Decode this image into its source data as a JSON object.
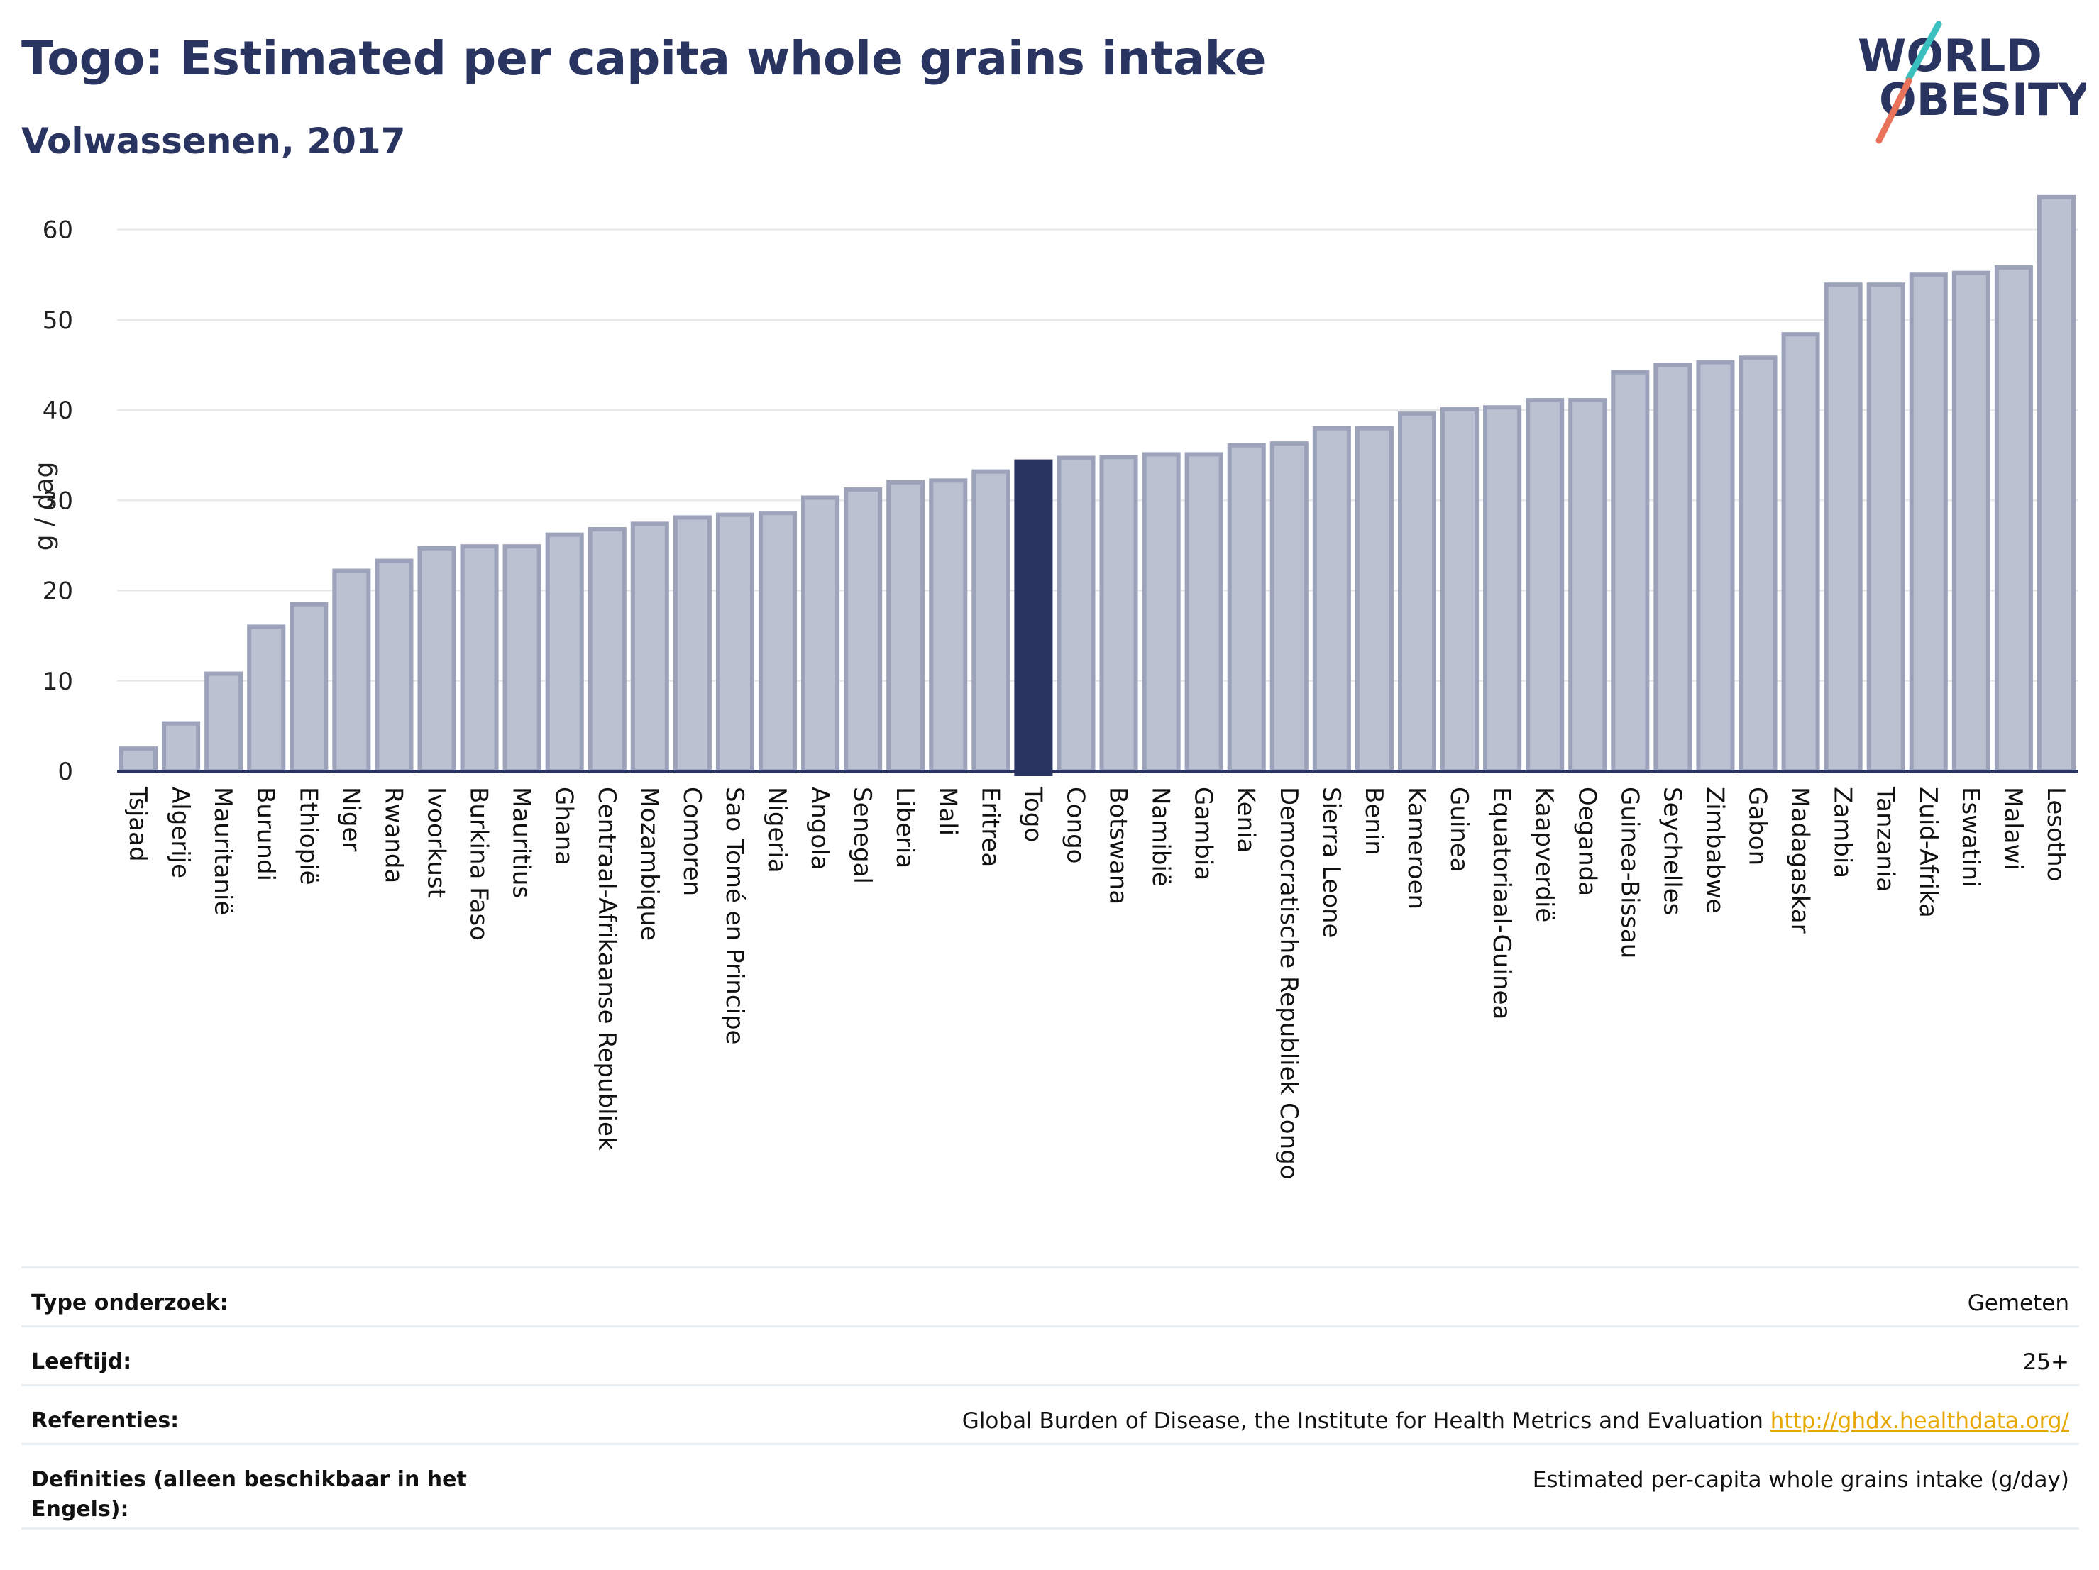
{
  "title": "Togo: Estimated per capita whole grains intake",
  "subtitle": "Volwassenen, 2017",
  "logo": {
    "line1": "WORLD",
    "line2": "OBESITY",
    "accent_colors": [
      "#3bbfbf",
      "#e8735a"
    ]
  },
  "colors": {
    "highlight": "#2a3461",
    "bar_fill": "#bcc1d1",
    "bar_stroke": "#9ba2b9",
    "grid": "#e4e6ea"
  },
  "chart_data": {
    "type": "bar",
    "ylabel": "g / dag",
    "ylim": [
      0,
      65
    ],
    "yticks": [
      0,
      10,
      20,
      30,
      40,
      50,
      60
    ],
    "highlight": "Togo",
    "grid": true,
    "categories": [
      "Tsjaad",
      "Algerije",
      "Mauritanië",
      "Burundi",
      "Ethiopië",
      "Niger",
      "Rwanda",
      "Ivoorkust",
      "Burkina Faso",
      "Mauritius",
      "Ghana",
      "Centraal-Afrikaanse Republiek",
      "Mozambique",
      "Comoren",
      "Sao Tomé en Principe",
      "Nigeria",
      "Angola",
      "Senegal",
      "Liberia",
      "Mali",
      "Eritrea",
      "Togo",
      "Congo",
      "Botswana",
      "Namibië",
      "Gambia",
      "Kenia",
      "Democratische Republiek Congo",
      "Sierra Leone",
      "Benin",
      "Kameroen",
      "Guinea",
      "Equatoriaal-Guinea",
      "Kaapverdië",
      "Oeganda",
      "Guinea-Bissau",
      "Seychelles",
      "Zimbabwe",
      "Gabon",
      "Madagaskar",
      "Zambia",
      "Tanzania",
      "Zuid-Afrika",
      "Eswatini",
      "Malawi",
      "Lesotho"
    ],
    "values": [
      2.5,
      5.3,
      10.8,
      16.0,
      18.5,
      22.2,
      23.3,
      24.7,
      24.9,
      24.9,
      26.2,
      26.8,
      27.4,
      28.1,
      28.4,
      28.6,
      30.3,
      31.2,
      32.0,
      32.2,
      33.2,
      34.3,
      34.7,
      34.8,
      35.1,
      35.1,
      36.1,
      36.3,
      38.0,
      38.0,
      39.6,
      40.1,
      40.3,
      41.1,
      41.1,
      44.2,
      45.0,
      45.3,
      45.8,
      48.4,
      53.9,
      53.9,
      55.0,
      55.2,
      55.8,
      63.6
    ]
  },
  "meta": [
    {
      "label": "Type onderzoek:",
      "value": "Gemeten"
    },
    {
      "label": "Leeftijd:",
      "value": "25+"
    },
    {
      "label": "Referenties:",
      "value": "Global Burden of Disease, the Institute for Health Metrics and Evaluation",
      "link": "http://ghdx.healthdata.org/"
    },
    {
      "label": "Definities (alleen beschikbaar in het Engels):",
      "value": "Estimated per-capita whole grains intake (g/day)"
    }
  ]
}
